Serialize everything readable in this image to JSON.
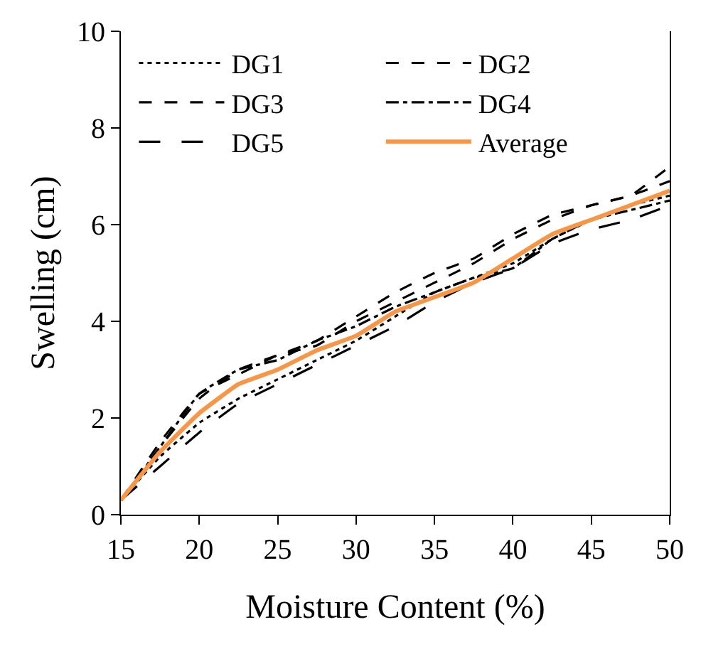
{
  "chart_data": {
    "type": "line",
    "xlabel": "Moisture Content (%)",
    "ylabel": "Swelling (cm)",
    "x": [
      15,
      17.5,
      20,
      22.5,
      25,
      27.5,
      30,
      32.5,
      35,
      37.5,
      40,
      42.5,
      45,
      47.5,
      50
    ],
    "series": [
      {
        "name": "DG1",
        "color": "#000000",
        "line_style": "dotted",
        "values": [
          0.3,
          1.2,
          1.9,
          2.4,
          2.8,
          3.2,
          3.6,
          4.1,
          4.6,
          4.9,
          5.2,
          5.7,
          6.1,
          6.4,
          6.6
        ]
      },
      {
        "name": "DG2",
        "color": "#000000",
        "line_style": "dashed",
        "values": [
          0.3,
          1.5,
          2.5,
          2.9,
          3.3,
          3.5,
          4.0,
          4.4,
          4.8,
          5.2,
          5.7,
          6.1,
          6.4,
          6.6,
          7.2
        ]
      },
      {
        "name": "DG3",
        "color": "#000000",
        "line_style": "dashed",
        "values": [
          0.3,
          1.4,
          2.4,
          3.0,
          3.3,
          3.6,
          4.1,
          4.6,
          5.0,
          5.3,
          5.8,
          6.2,
          6.4,
          6.6,
          6.9
        ]
      },
      {
        "name": "DG4",
        "color": "#000000",
        "line_style": "dashdot",
        "values": [
          0.3,
          1.4,
          2.5,
          3.0,
          3.2,
          3.6,
          3.9,
          4.3,
          4.6,
          4.9,
          5.1,
          5.7,
          6.1,
          6.3,
          6.5
        ]
      },
      {
        "name": "DG5",
        "color": "#000000",
        "line_style": "longdash",
        "values": [
          0.3,
          1.0,
          1.7,
          2.3,
          2.7,
          3.1,
          3.5,
          3.9,
          4.4,
          4.8,
          5.1,
          5.6,
          5.9,
          6.1,
          6.4
        ]
      },
      {
        "name": "Average",
        "color": "#f79646",
        "line_style": "solid",
        "values": [
          0.3,
          1.3,
          2.1,
          2.7,
          3.0,
          3.4,
          3.7,
          4.2,
          4.5,
          4.8,
          5.3,
          5.8,
          6.1,
          6.4,
          6.7
        ]
      }
    ],
    "xlim": [
      15,
      50
    ],
    "xticks": [
      15,
      20,
      25,
      30,
      35,
      40,
      45,
      50
    ],
    "ylim": [
      0,
      10
    ],
    "yticks": [
      0,
      2,
      4,
      6,
      8,
      10
    ],
    "legend": "top",
    "marker": "none"
  }
}
